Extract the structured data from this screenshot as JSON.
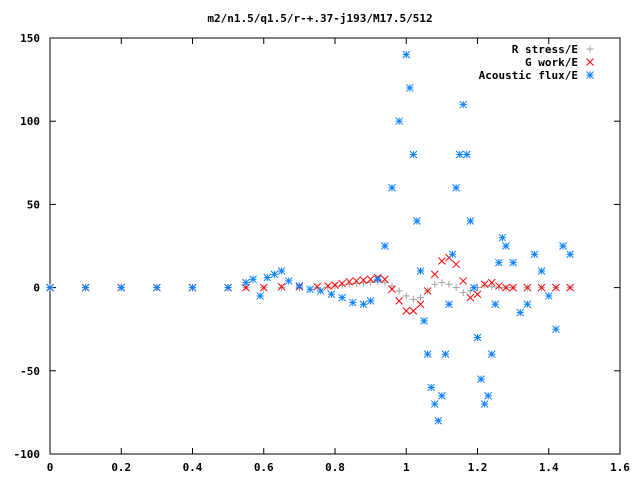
{
  "chart_data": {
    "type": "scatter",
    "title": "m2/n1.5/q1.5/r-+.37-j193/M17.5/512",
    "xlabel": "",
    "ylabel": "",
    "xlim": [
      0,
      1.6
    ],
    "ylim": [
      -100,
      150
    ],
    "x_ticks": [
      "0",
      "0.2",
      "0.4",
      "0.6",
      "0.8",
      "1",
      "1.2",
      "1.4",
      "1.6"
    ],
    "y_ticks": [
      "150",
      "100",
      "50",
      "0",
      "-50",
      "-100"
    ],
    "grid": false,
    "legend_position": "top-right",
    "series": [
      {
        "name": "R stress/E",
        "marker": "plus",
        "color": "#a0a0a0",
        "x": [
          0.0,
          0.1,
          0.2,
          0.3,
          0.4,
          0.5,
          0.55,
          0.6,
          0.65,
          0.7,
          0.75,
          0.78,
          0.8,
          0.82,
          0.84,
          0.86,
          0.88,
          0.9,
          0.92,
          0.94,
          0.96,
          0.98,
          1.0,
          1.02,
          1.04,
          1.06,
          1.08,
          1.1,
          1.12,
          1.14,
          1.16,
          1.18,
          1.2,
          1.22,
          1.24,
          1.26,
          1.28,
          1.3,
          1.34,
          1.38,
          1.42,
          1.46
        ],
        "y": [
          0,
          0,
          0,
          0,
          0,
          0,
          0,
          0,
          0,
          0,
          0,
          0.3,
          1,
          1.5,
          2,
          2.5,
          2.8,
          3.2,
          3.5,
          3,
          1,
          -2,
          -5,
          -7,
          -6,
          -2,
          2,
          3,
          2,
          0,
          -3,
          -2,
          0,
          1.5,
          0.5,
          0,
          0,
          0,
          0,
          0,
          0,
          0
        ]
      },
      {
        "name": "G work/E",
        "marker": "cross",
        "color": "#ff0000",
        "x": [
          0.0,
          0.1,
          0.2,
          0.3,
          0.4,
          0.5,
          0.55,
          0.6,
          0.65,
          0.7,
          0.75,
          0.78,
          0.8,
          0.82,
          0.84,
          0.86,
          0.88,
          0.9,
          0.92,
          0.94,
          0.96,
          0.98,
          1.0,
          1.02,
          1.04,
          1.06,
          1.08,
          1.1,
          1.12,
          1.14,
          1.16,
          1.18,
          1.2,
          1.22,
          1.24,
          1.26,
          1.28,
          1.3,
          1.34,
          1.38,
          1.42,
          1.46
        ],
        "y": [
          0,
          0,
          0,
          0,
          0,
          0,
          0,
          0,
          0.5,
          0.5,
          0.5,
          1,
          1.5,
          2.5,
          3.5,
          4,
          4.5,
          5,
          6,
          5,
          -1,
          -8,
          -14,
          -14,
          -10,
          -2,
          8,
          16,
          18,
          14,
          4,
          -6,
          -4,
          2,
          3,
          1,
          0,
          0,
          0,
          0,
          0,
          0
        ]
      },
      {
        "name": "Acoustic flux/E",
        "marker": "star",
        "color": "#0a80ff",
        "x": [
          0.0,
          0.1,
          0.2,
          0.3,
          0.4,
          0.5,
          0.55,
          0.57,
          0.59,
          0.61,
          0.63,
          0.65,
          0.67,
          0.7,
          0.73,
          0.76,
          0.79,
          0.82,
          0.85,
          0.88,
          0.9,
          0.92,
          0.94,
          0.96,
          0.98,
          1.0,
          1.01,
          1.02,
          1.03,
          1.04,
          1.05,
          1.06,
          1.07,
          1.08,
          1.09,
          1.1,
          1.11,
          1.12,
          1.13,
          1.14,
          1.15,
          1.16,
          1.17,
          1.18,
          1.19,
          1.2,
          1.21,
          1.22,
          1.23,
          1.24,
          1.25,
          1.26,
          1.27,
          1.28,
          1.3,
          1.32,
          1.34,
          1.36,
          1.38,
          1.4,
          1.42,
          1.44,
          1.46
        ],
        "y": [
          0,
          0,
          0,
          0,
          0,
          0,
          3,
          5,
          -5,
          6,
          8,
          10,
          4,
          1,
          -1,
          -2,
          -4,
          -6,
          -9,
          -10,
          -8,
          5,
          25,
          60,
          100,
          140,
          120,
          80,
          40,
          10,
          -20,
          -40,
          -60,
          -70,
          -80,
          -65,
          -40,
          -10,
          20,
          60,
          80,
          110,
          80,
          40,
          0,
          -30,
          -55,
          -70,
          -65,
          -40,
          -10,
          15,
          30,
          25,
          15,
          -15,
          -10,
          20,
          10,
          -5,
          -25,
          25,
          20
        ]
      }
    ]
  }
}
